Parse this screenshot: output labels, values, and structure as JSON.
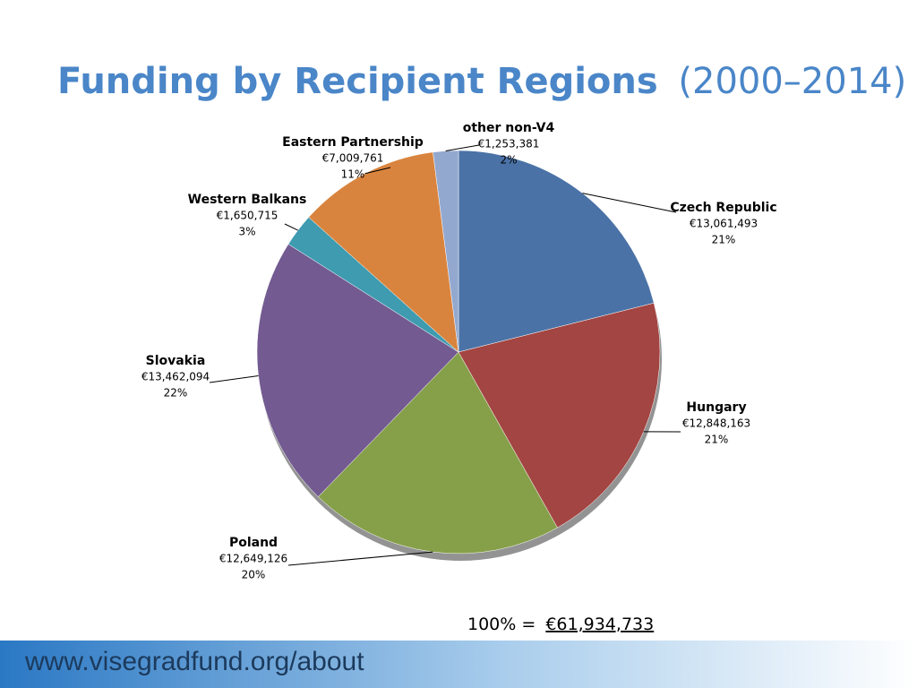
{
  "chart_data": {
    "type": "pie",
    "title": "Funding by Recipient Regions",
    "subtitle": "(2000–2014)",
    "categories": [
      "Czech Republic",
      "Hungary",
      "Poland",
      "Slovakia",
      "Western Balkans",
      "Eastern Partnership",
      "other non-V4"
    ],
    "values": [
      13061493,
      12848163,
      12649126,
      13462094,
      1650715,
      7009761,
      1253381
    ],
    "value_labels": [
      "€13,061,493",
      "€12,848,163",
      "€12,649,126",
      "€13,462,094",
      "€1,650,715",
      "€7,009,761",
      "€1,253,381"
    ],
    "percents": [
      {
        "value": 21,
        "label": "21%"
      },
      {
        "value": 21,
        "label": "21%"
      },
      {
        "value": 20,
        "label": "20%"
      },
      {
        "value": 22,
        "label": "22%"
      },
      {
        "value": 3,
        "label": "3%"
      },
      {
        "value": 11,
        "label": "11%"
      },
      {
        "value": 2,
        "label": "2%"
      }
    ],
    "colors": [
      "#4a72a6",
      "#a34542",
      "#86a04a",
      "#735a91",
      "#3e9bb0",
      "#d9843e",
      "#93a8cf"
    ],
    "total_text": "100% =",
    "total": {
      "value": 61934733,
      "label": "€61,934,733"
    },
    "footer": "www.visegradfund.org/about"
  }
}
